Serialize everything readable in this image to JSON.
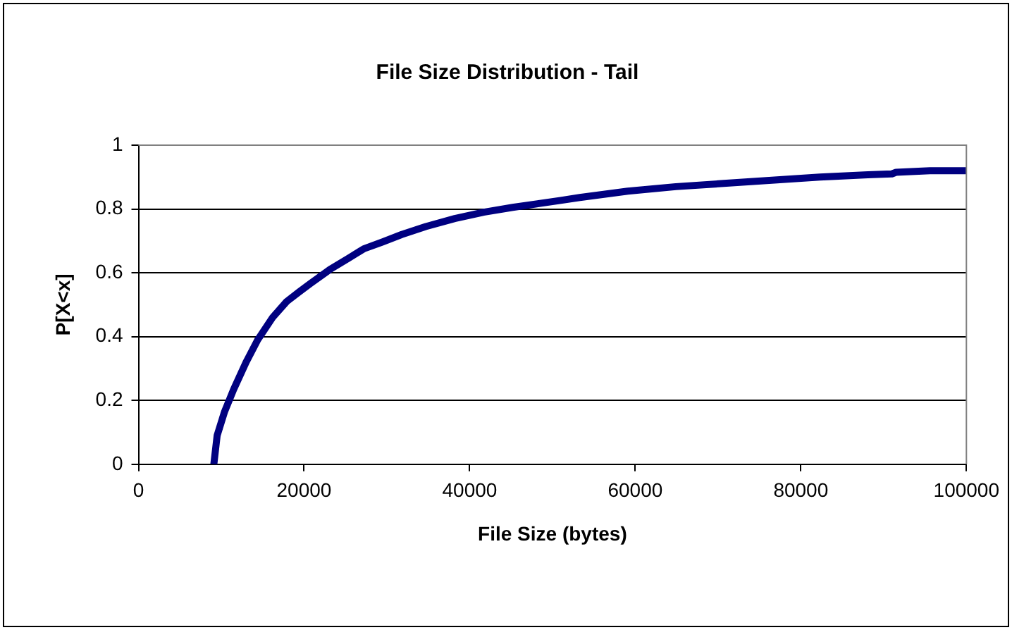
{
  "chart_data": {
    "type": "line",
    "title": "File Size Distribution - Tail",
    "xlabel": "File Size (bytes)",
    "ylabel": "P[X<x]",
    "series": [
      {
        "color": "#000080",
        "x": [
          9100,
          9500,
          10400,
          11500,
          13000,
          14400,
          16200,
          17900,
          19400,
          20800,
          23100,
          25400,
          27200,
          29500,
          31800,
          34700,
          38200,
          41700,
          45200,
          51000,
          53300,
          59100,
          64900,
          70700,
          76500,
          82300,
          88100,
          91000,
          91500,
          95600,
          100000
        ],
        "values": [
          0,
          0.09,
          0.165,
          0.235,
          0.32,
          0.39,
          0.46,
          0.51,
          0.54,
          0.567,
          0.61,
          0.646,
          0.675,
          0.697,
          0.72,
          0.745,
          0.77,
          0.79,
          0.805,
          0.827,
          0.836,
          0.856,
          0.87,
          0.88,
          0.89,
          0.9,
          0.907,
          0.91,
          0.915,
          0.92,
          0.92
        ]
      }
    ],
    "xlim": [
      0,
      100000
    ],
    "xticks": [
      0,
      20000,
      40000,
      60000,
      80000,
      100000
    ],
    "ylim": [
      0,
      1
    ],
    "yticks": [
      0,
      0.2,
      0.4,
      0.6,
      0.8,
      1
    ],
    "grid": "y",
    "legend": false,
    "marker": "none",
    "line_style": "solid"
  }
}
